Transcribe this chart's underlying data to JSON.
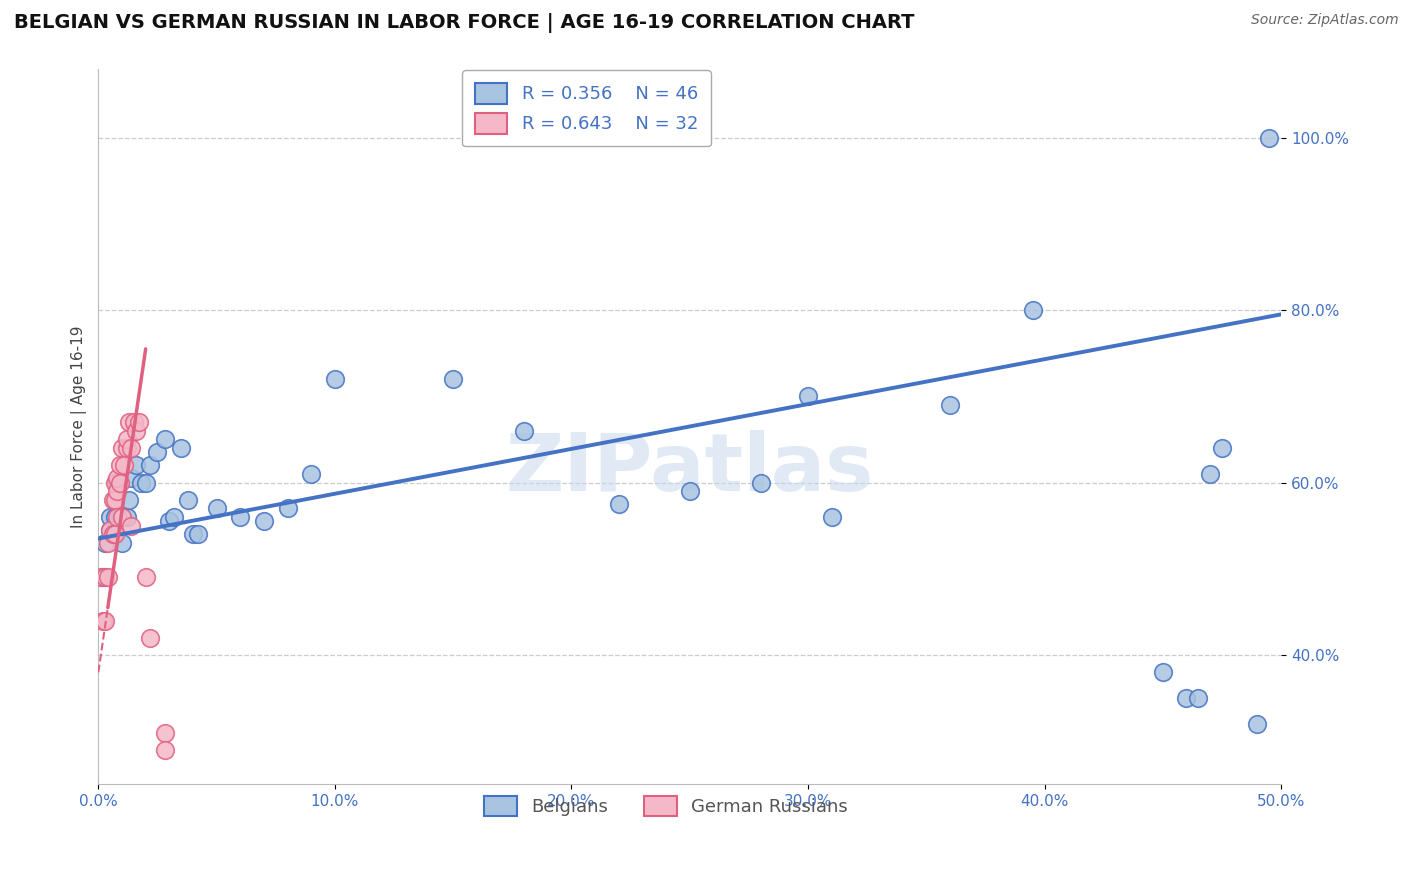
{
  "title": "BELGIAN VS GERMAN RUSSIAN IN LABOR FORCE | AGE 16-19 CORRELATION CHART",
  "source": "Source: ZipAtlas.com",
  "ylabel": "In Labor Force | Age 16-19",
  "xlim": [
    0.0,
    0.5
  ],
  "ylim": [
    0.25,
    1.08
  ],
  "xtick_vals": [
    0.0,
    0.1,
    0.2,
    0.3,
    0.4,
    0.5
  ],
  "xtick_labels": [
    "0.0%",
    "10.0%",
    "20.0%",
    "30.0%",
    "40.0%",
    "50.0%"
  ],
  "ytick_vals": [
    0.4,
    0.6,
    0.8,
    1.0
  ],
  "ytick_labels": [
    "40.0%",
    "60.0%",
    "80.0%",
    "100.0%"
  ],
  "blue_fill": "#a8c4e0",
  "blue_edge": "#4472c4",
  "pink_fill": "#f4b8c8",
  "pink_edge": "#e06080",
  "blue_line_color": "#4472c4",
  "pink_line_color": "#e06080",
  "legend_text_color": "#4472c4",
  "watermark": "ZIPatlas",
  "blue_points_x": [
    0.002,
    0.003,
    0.005,
    0.005,
    0.007,
    0.008,
    0.009,
    0.01,
    0.01,
    0.012,
    0.013,
    0.014,
    0.016,
    0.018,
    0.02,
    0.022,
    0.025,
    0.028,
    0.03,
    0.032,
    0.035,
    0.038,
    0.04,
    0.042,
    0.05,
    0.06,
    0.07,
    0.08,
    0.09,
    0.1,
    0.15,
    0.18,
    0.22,
    0.25,
    0.28,
    0.3,
    0.31,
    0.36,
    0.395,
    0.45,
    0.46,
    0.465,
    0.47,
    0.475,
    0.49,
    0.495
  ],
  "blue_points_y": [
    0.49,
    0.53,
    0.545,
    0.56,
    0.56,
    0.6,
    0.56,
    0.53,
    0.56,
    0.56,
    0.58,
    0.605,
    0.62,
    0.6,
    0.6,
    0.62,
    0.635,
    0.65,
    0.555,
    0.56,
    0.64,
    0.58,
    0.54,
    0.54,
    0.57,
    0.56,
    0.555,
    0.57,
    0.61,
    0.72,
    0.72,
    0.66,
    0.575,
    0.59,
    0.6,
    0.7,
    0.56,
    0.69,
    0.8,
    0.38,
    0.35,
    0.35,
    0.61,
    0.64,
    0.32,
    1.0
  ],
  "pink_points_x": [
    0.001,
    0.002,
    0.003,
    0.003,
    0.004,
    0.004,
    0.005,
    0.006,
    0.006,
    0.007,
    0.007,
    0.007,
    0.008,
    0.008,
    0.008,
    0.009,
    0.009,
    0.01,
    0.01,
    0.011,
    0.012,
    0.012,
    0.013,
    0.014,
    0.014,
    0.015,
    0.016,
    0.017,
    0.02,
    0.022,
    0.028,
    0.028
  ],
  "pink_points_y": [
    0.49,
    0.44,
    0.49,
    0.44,
    0.53,
    0.49,
    0.545,
    0.54,
    0.58,
    0.54,
    0.58,
    0.6,
    0.59,
    0.56,
    0.605,
    0.6,
    0.62,
    0.56,
    0.64,
    0.62,
    0.64,
    0.65,
    0.67,
    0.55,
    0.64,
    0.67,
    0.66,
    0.67,
    0.49,
    0.42,
    0.31,
    0.29
  ],
  "blue_trend_x0": 0.0,
  "blue_trend_x1": 0.5,
  "blue_trend_y0": 0.535,
  "blue_trend_y1": 0.795,
  "pink_trend_solid_x0": 0.004,
  "pink_trend_solid_x1": 0.02,
  "pink_trend_y0": 0.455,
  "pink_trend_y1": 0.755,
  "pink_trend_dashed_x0": 0.0,
  "pink_trend_dashed_x1": 0.004,
  "pink_trend_dashed_y0": 0.38,
  "pink_trend_dashed_y1": 0.455,
  "grid_color": "#cccccc",
  "background_color": "#ffffff",
  "title_fontsize": 14,
  "axis_label_fontsize": 11,
  "tick_fontsize": 11,
  "legend_fontsize": 13
}
